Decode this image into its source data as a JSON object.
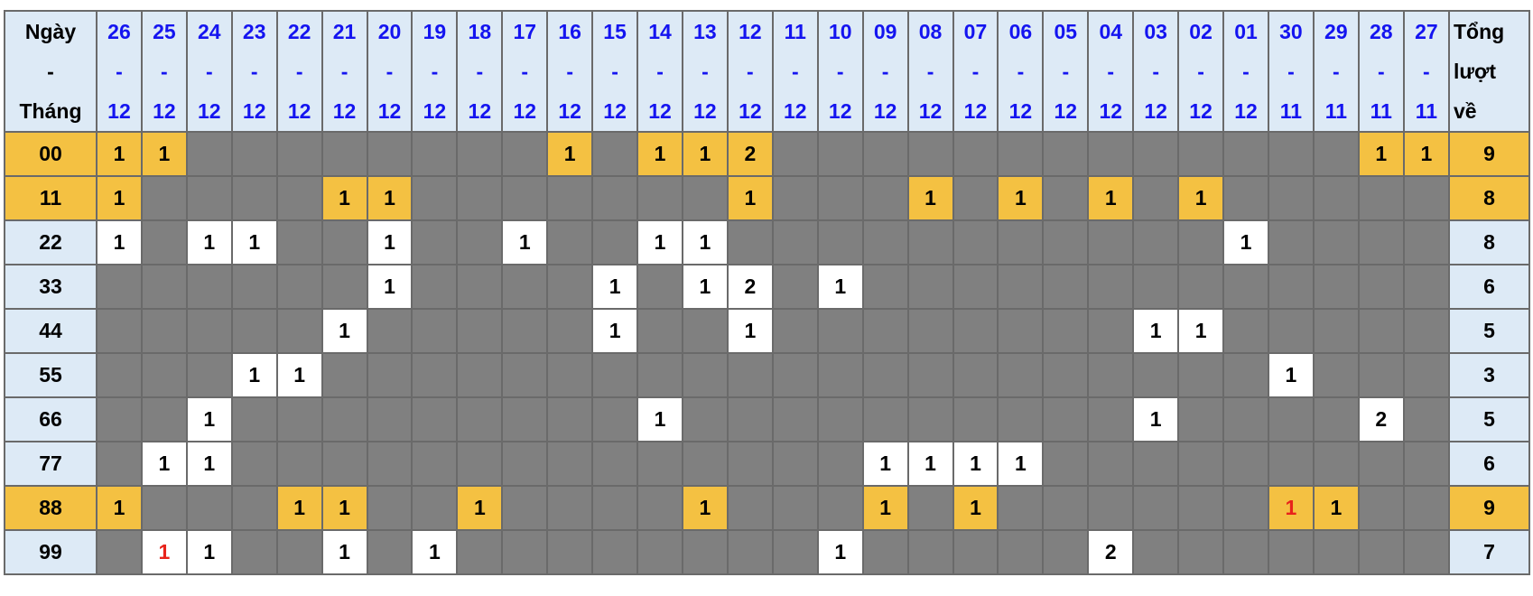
{
  "header": {
    "first_col": [
      "Ngày",
      "-",
      "Tháng"
    ],
    "total_col": [
      "Tổng",
      "lượt",
      "về"
    ],
    "dates": [
      [
        "26",
        "-",
        "12"
      ],
      [
        "25",
        "-",
        "12"
      ],
      [
        "24",
        "-",
        "12"
      ],
      [
        "23",
        "-",
        "12"
      ],
      [
        "22",
        "-",
        "12"
      ],
      [
        "21",
        "-",
        "12"
      ],
      [
        "20",
        "-",
        "12"
      ],
      [
        "19",
        "-",
        "12"
      ],
      [
        "18",
        "-",
        "12"
      ],
      [
        "17",
        "-",
        "12"
      ],
      [
        "16",
        "-",
        "12"
      ],
      [
        "15",
        "-",
        "12"
      ],
      [
        "14",
        "-",
        "12"
      ],
      [
        "13",
        "-",
        "12"
      ],
      [
        "12",
        "-",
        "12"
      ],
      [
        "11",
        "-",
        "12"
      ],
      [
        "10",
        "-",
        "12"
      ],
      [
        "09",
        "-",
        "12"
      ],
      [
        "08",
        "-",
        "12"
      ],
      [
        "07",
        "-",
        "12"
      ],
      [
        "06",
        "-",
        "12"
      ],
      [
        "05",
        "-",
        "12"
      ],
      [
        "04",
        "-",
        "12"
      ],
      [
        "03",
        "-",
        "12"
      ],
      [
        "02",
        "-",
        "12"
      ],
      [
        "01",
        "-",
        "12"
      ],
      [
        "30",
        "-",
        "11"
      ],
      [
        "29",
        "-",
        "11"
      ],
      [
        "28",
        "-",
        "11"
      ],
      [
        "27",
        "-",
        "11"
      ]
    ]
  },
  "colors": {
    "header_bg": "#ddeaf6",
    "empty": "#808080",
    "highlight": "#f4c142",
    "hit": "#ffffff",
    "date_text": "#1414f0",
    "red_text": "#e8231b"
  },
  "rows": [
    {
      "label": "00",
      "highlight": true,
      "total": "9",
      "red": [],
      "cells": [
        "1",
        "1",
        "",
        "",
        "",
        "",
        "",
        "",
        "",
        "",
        "1",
        "",
        "1",
        "1",
        "2",
        "",
        "",
        "",
        "",
        "",
        "",
        "",
        "",
        "",
        "",
        "",
        "",
        "",
        "1",
        "1"
      ]
    },
    {
      "label": "11",
      "highlight": true,
      "total": "8",
      "red": [],
      "cells": [
        "1",
        "",
        "",
        "",
        "",
        "1",
        "1",
        "",
        "",
        "",
        "",
        "",
        "",
        "",
        "1",
        "",
        "",
        "",
        "1",
        "",
        "1",
        "",
        "1",
        "",
        "1",
        "",
        "",
        "",
        "",
        ""
      ]
    },
    {
      "label": "22",
      "highlight": false,
      "total": "8",
      "red": [],
      "cells": [
        "1",
        "",
        "1",
        "1",
        "",
        "",
        "1",
        "",
        "",
        "1",
        "",
        "",
        "1",
        "1",
        "",
        "",
        "",
        "",
        "",
        "",
        "",
        "",
        "",
        "",
        "",
        "1",
        "",
        "",
        "",
        ""
      ]
    },
    {
      "label": "33",
      "highlight": false,
      "total": "6",
      "red": [],
      "cells": [
        "",
        "",
        "",
        "",
        "",
        "",
        "1",
        "",
        "",
        "",
        "",
        "1",
        "",
        "1",
        "2",
        "",
        "1",
        "",
        "",
        "",
        "",
        "",
        "",
        "",
        "",
        "",
        "",
        "",
        "",
        ""
      ]
    },
    {
      "label": "44",
      "highlight": false,
      "total": "5",
      "red": [],
      "cells": [
        "",
        "",
        "",
        "",
        "",
        "1",
        "",
        "",
        "",
        "",
        "",
        "1",
        "",
        "",
        "1",
        "",
        "",
        "",
        "",
        "",
        "",
        "",
        "",
        "1",
        "1",
        "",
        "",
        "",
        "",
        ""
      ]
    },
    {
      "label": "55",
      "highlight": false,
      "total": "3",
      "red": [],
      "cells": [
        "",
        "",
        "",
        "1",
        "1",
        "",
        "",
        "",
        "",
        "",
        "",
        "",
        "",
        "",
        "",
        "",
        "",
        "",
        "",
        "",
        "",
        "",
        "",
        "",
        "",
        "",
        "1",
        "",
        "",
        ""
      ]
    },
    {
      "label": "66",
      "highlight": false,
      "total": "5",
      "red": [],
      "cells": [
        "",
        "",
        "1",
        "",
        "",
        "",
        "",
        "",
        "",
        "",
        "",
        "",
        "1",
        "",
        "",
        "",
        "",
        "",
        "",
        "",
        "",
        "",
        "",
        "1",
        "",
        "",
        "",
        "",
        "2",
        ""
      ]
    },
    {
      "label": "77",
      "highlight": false,
      "total": "6",
      "red": [],
      "cells": [
        "",
        "1",
        "1",
        "",
        "",
        "",
        "",
        "",
        "",
        "",
        "",
        "",
        "",
        "",
        "",
        "",
        "",
        "1",
        "1",
        "1",
        "1",
        "",
        "",
        "",
        "",
        "",
        "",
        "",
        "",
        ""
      ]
    },
    {
      "label": "88",
      "highlight": true,
      "total": "9",
      "red": [
        "30-11"
      ],
      "cells": [
        "1",
        "",
        "",
        "",
        "1",
        "1",
        "",
        "",
        "1",
        "",
        "",
        "",
        "",
        "1",
        "",
        "",
        "",
        "1",
        "",
        "1",
        "",
        "",
        "",
        "",
        "",
        "",
        "1",
        "1",
        "",
        ""
      ]
    },
    {
      "label": "99",
      "highlight": false,
      "total": "7",
      "red": [
        "25-12"
      ],
      "cells": [
        "",
        "1",
        "1",
        "",
        "",
        "1",
        "",
        "1",
        "",
        "",
        "",
        "",
        "",
        "",
        "",
        "",
        "1",
        "",
        "",
        "",
        "",
        "",
        "2",
        "",
        "",
        "",
        "",
        "",
        "",
        ""
      ]
    }
  ]
}
